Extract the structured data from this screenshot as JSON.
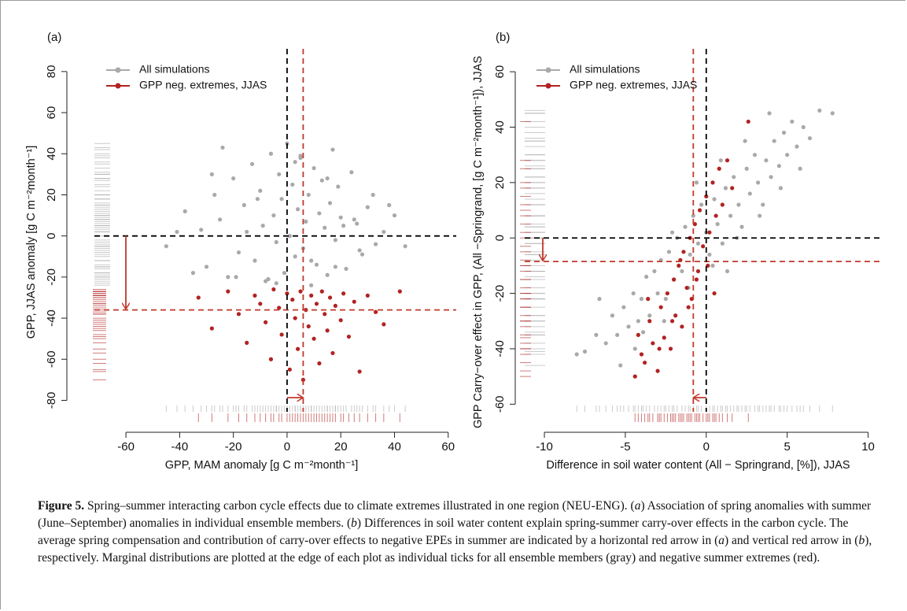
{
  "chart_data": [
    {
      "type": "scatter",
      "label": "(a)",
      "x_label": "GPP, MAM anomaly [g C m⁻²month⁻¹]",
      "y_label": "GPP, JJAS anomaly [g C m⁻²month⁻¹]",
      "xlim": [
        -82,
        63
      ],
      "ylim": [
        -94,
        88
      ],
      "xticks": [
        -60,
        -40,
        -20,
        0,
        20,
        40,
        60
      ],
      "yticks": [
        -80,
        -60,
        -40,
        -20,
        0,
        20,
        40,
        60,
        80
      ],
      "hlines": [
        {
          "value": 0,
          "color": "#000000"
        },
        {
          "value": -36,
          "color": "#c0392b"
        }
      ],
      "vlines": [
        {
          "value": 0,
          "color": "#000000"
        },
        {
          "value": 6,
          "color": "#c0392b"
        }
      ],
      "series": [
        {
          "name": "All simulations",
          "color": "#a9a9a9",
          "x": [
            -45,
            -38,
            -32,
            -30,
            -27,
            -25,
            -22,
            -20,
            -18,
            -16,
            -15,
            -13,
            -12,
            -10,
            -9,
            -8,
            -6,
            -5,
            -4,
            -3,
            -2,
            -1,
            0,
            1,
            2,
            3,
            4,
            5,
            6,
            7,
            8,
            9,
            10,
            11,
            12,
            13,
            14,
            15,
            16,
            17,
            18,
            19,
            20,
            22,
            24,
            26,
            28,
            30,
            33,
            36,
            40,
            -28,
            -19,
            -11,
            -4,
            3,
            9,
            15,
            21,
            27,
            32,
            -35,
            -24,
            -7,
            5,
            18,
            25,
            38,
            -41,
            44
          ],
          "values": [
            -5,
            12,
            3,
            -15,
            20,
            8,
            -20,
            28,
            -8,
            15,
            2,
            35,
            -12,
            22,
            5,
            -22,
            40,
            10,
            -3,
            30,
            18,
            -18,
            45,
            0,
            25,
            -10,
            13,
            38,
            -6,
            7,
            20,
            -24,
            33,
            -14,
            11,
            27,
            4,
            -19,
            16,
            42,
            -2,
            24,
            9,
            -16,
            31,
            6,
            -9,
            14,
            -4,
            2,
            10,
            30,
            -20,
            18,
            -23,
            36,
            -12,
            28,
            5,
            -7,
            20,
            -18,
            43,
            -21,
            39,
            -15,
            8,
            15,
            2,
            -5
          ]
        },
        {
          "name": "GPP neg. extremes, JJAS",
          "color": "#b22222",
          "x": [
            -33,
            -28,
            -22,
            -18,
            -15,
            -12,
            -10,
            -8,
            -6,
            -5,
            -3,
            -2,
            0,
            1,
            2,
            3,
            4,
            5,
            6,
            7,
            8,
            9,
            10,
            11,
            12,
            13,
            14,
            15,
            16,
            17,
            18,
            20,
            21,
            23,
            25,
            27,
            30,
            33,
            36,
            42
          ],
          "values": [
            -30,
            -45,
            -27,
            -38,
            -52,
            -29,
            -33,
            -42,
            -60,
            -26,
            -35,
            -48,
            -28,
            -65,
            -31,
            -40,
            -55,
            -27,
            -70,
            -36,
            -44,
            -29,
            -50,
            -33,
            -62,
            -27,
            -38,
            -46,
            -30,
            -57,
            -34,
            -41,
            -28,
            -49,
            -32,
            -66,
            -29,
            -37,
            -43,
            -27
          ]
        }
      ]
    },
    {
      "type": "scatter",
      "label": "(b)",
      "x_label": "Difference in soil water content (All − Springrand, [%]), JJAS",
      "y_label": "GPP Carry−over effect in GPP, (All −Springrand, [g C m⁻²month⁻¹]), JJAS",
      "xlim": [
        -11.8,
        10.8
      ],
      "ylim": [
        -69,
        66
      ],
      "xticks": [
        -10,
        -5,
        0,
        5,
        10
      ],
      "yticks": [
        -60,
        -40,
        -20,
        0,
        20,
        40,
        60
      ],
      "hlines": [
        {
          "value": 0,
          "color": "#000000"
        },
        {
          "value": -8.5,
          "color": "#c0392b"
        }
      ],
      "vlines": [
        {
          "value": 0,
          "color": "#000000"
        },
        {
          "value": -0.8,
          "color": "#c0392b"
        }
      ],
      "series": [
        {
          "name": "All simulations",
          "color": "#a9a9a9",
          "x": [
            -8,
            -7.5,
            -6.8,
            -6.2,
            -5.8,
            -5.5,
            -5.1,
            -4.8,
            -4.5,
            -4.2,
            -4,
            -3.7,
            -3.5,
            -3.2,
            -3,
            -2.8,
            -2.5,
            -2.3,
            -2,
            -1.8,
            -1.5,
            -1.3,
            -1,
            -0.8,
            -0.5,
            -0.3,
            0,
            0.2,
            0.5,
            0.7,
            1,
            1.2,
            1.5,
            1.7,
            2,
            2.2,
            2.5,
            2.7,
            3,
            3.2,
            3.5,
            3.7,
            4,
            4.2,
            4.5,
            4.8,
            5,
            5.3,
            5.6,
            6,
            6.4,
            7,
            7.8,
            -3.9,
            -2.6,
            -1.1,
            0.4,
            1.9,
            3.3,
            4.6,
            -5.3,
            -4.4,
            -0.6,
            0.9,
            2.4,
            5.8,
            -6.6,
            3.9,
            1.3,
            -2.1
          ],
          "values": [
            -42,
            -41,
            -35,
            -38,
            -28,
            -35,
            -25,
            -32,
            -20,
            -30,
            -22,
            -14,
            -28,
            -12,
            -20,
            -8,
            -22,
            -5,
            -15,
            0,
            -12,
            4,
            -6,
            8,
            -2,
            12,
            2,
            -6,
            14,
            5,
            -2,
            18,
            8,
            22,
            12,
            4,
            25,
            16,
            30,
            20,
            12,
            28,
            22,
            35,
            26,
            38,
            30,
            42,
            33,
            40,
            36,
            46,
            45,
            -34,
            -30,
            -18,
            -10,
            0,
            8,
            18,
            -46,
            -40,
            20,
            28,
            35,
            25,
            -22,
            45,
            -12,
            2
          ]
        },
        {
          "name": "GPP neg. extremes, JJAS",
          "color": "#b22222",
          "x": [
            -4.4,
            -4,
            -3.8,
            -3.5,
            -3.3,
            -3,
            -2.8,
            -2.6,
            -2.4,
            -2.2,
            -2,
            -1.9,
            -1.7,
            -1.5,
            -1.4,
            -1.2,
            -1,
            -0.9,
            -0.7,
            -0.5,
            -0.4,
            -0.2,
            0,
            0.2,
            0.4,
            0.6,
            0.8,
            1,
            1.3,
            1.6,
            -3.6,
            -2.9,
            -2.1,
            -1.6,
            -1.1,
            -0.6,
            0.1,
            0.5,
            -4.2,
            2.6
          ],
          "values": [
            -50,
            -42,
            -45,
            -30,
            -38,
            -48,
            -25,
            -36,
            -20,
            -40,
            -15,
            -28,
            -10,
            -32,
            -5,
            -18,
            0,
            -22,
            5,
            -12,
            10,
            -3,
            15,
            2,
            20,
            8,
            25,
            12,
            28,
            18,
            -22,
            -40,
            -30,
            -8,
            -25,
            -15,
            -10,
            -20,
            -35,
            42
          ]
        }
      ]
    }
  ],
  "caption": {
    "parts": [
      "Figure 5.",
      " Spring–summer interacting carbon cycle effects due to climate extremes illustrated in one region (NEU-ENG). (",
      "a",
      ") Association of spring anomalies with summer (June–September) anomalies in individual ensemble members. (",
      "b",
      ") Differences in soil water content explain spring-summer carry-over effects in the carbon cycle. The average spring compensation and contribution of carry-over effects to negative EPEs in summer are indicated by a horizontal red arrow in (",
      "a",
      ") and vertical red arrow in (",
      "b",
      "), respectively. Marginal distributions are plotted at the edge of each plot as individual ticks for all ensemble members (gray) and negative summer extremes (red)."
    ]
  }
}
